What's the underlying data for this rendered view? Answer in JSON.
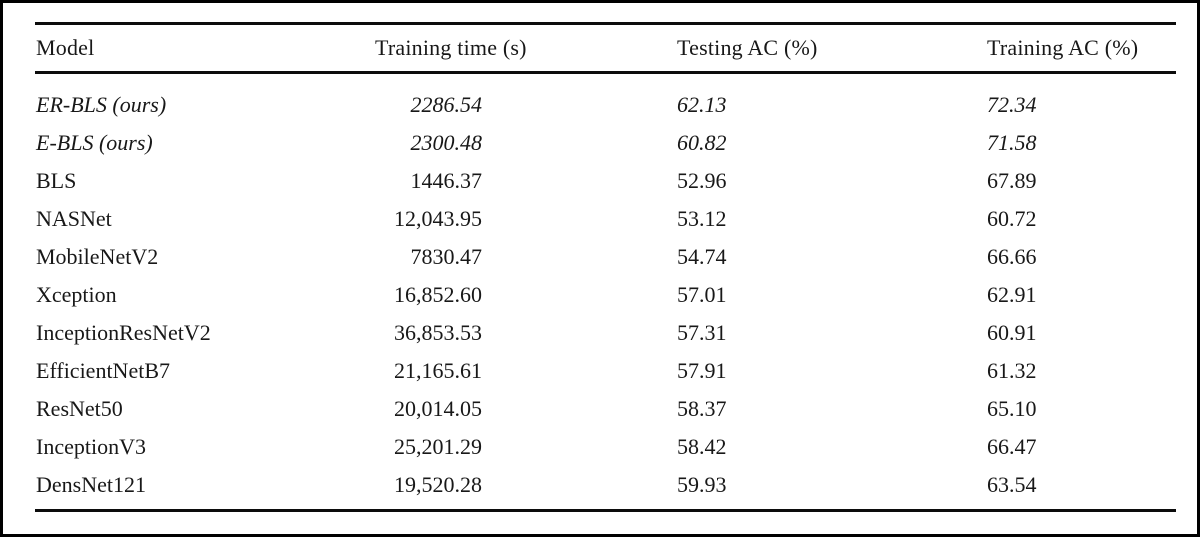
{
  "page": {
    "background": "#ffffff",
    "frame_border_color": "#000000",
    "rule_color": "#0c0c0c",
    "text_color": "#181818"
  },
  "table": {
    "columns": [
      {
        "label": "Model"
      },
      {
        "label": "Training time (s)"
      },
      {
        "label": "Testing AC (%)"
      },
      {
        "label": "Training AC (%)"
      }
    ],
    "rows": [
      {
        "model": "ER-BLS (ours)",
        "training_time_s": "2286.54",
        "testing_ac_pct": "62.13",
        "training_ac_pct": "72.34",
        "emphasis": true
      },
      {
        "model": "E-BLS (ours)",
        "training_time_s": "2300.48",
        "testing_ac_pct": "60.82",
        "training_ac_pct": "71.58",
        "emphasis": true
      },
      {
        "model": "BLS",
        "training_time_s": "1446.37",
        "testing_ac_pct": "52.96",
        "training_ac_pct": "67.89",
        "emphasis": false
      },
      {
        "model": "NASNet",
        "training_time_s": "12,043.95",
        "testing_ac_pct": "53.12",
        "training_ac_pct": "60.72",
        "emphasis": false
      },
      {
        "model": "MobileNetV2",
        "training_time_s": "7830.47",
        "testing_ac_pct": "54.74",
        "training_ac_pct": "66.66",
        "emphasis": false
      },
      {
        "model": "Xception",
        "training_time_s": "16,852.60",
        "testing_ac_pct": "57.01",
        "training_ac_pct": "62.91",
        "emphasis": false
      },
      {
        "model": "InceptionResNetV2",
        "training_time_s": "36,853.53",
        "testing_ac_pct": "57.31",
        "training_ac_pct": "60.91",
        "emphasis": false
      },
      {
        "model": "EfficientNetB7",
        "training_time_s": "21,165.61",
        "testing_ac_pct": "57.91",
        "training_ac_pct": "61.32",
        "emphasis": false
      },
      {
        "model": "ResNet50",
        "training_time_s": "20,014.05",
        "testing_ac_pct": "58.37",
        "training_ac_pct": "65.10",
        "emphasis": false
      },
      {
        "model": "InceptionV3",
        "training_time_s": "25,201.29",
        "testing_ac_pct": "58.42",
        "training_ac_pct": "66.47",
        "emphasis": false
      },
      {
        "model": "DensNet121",
        "training_time_s": "19,520.28",
        "testing_ac_pct": "59.93",
        "training_ac_pct": "63.54",
        "emphasis": false
      }
    ]
  }
}
